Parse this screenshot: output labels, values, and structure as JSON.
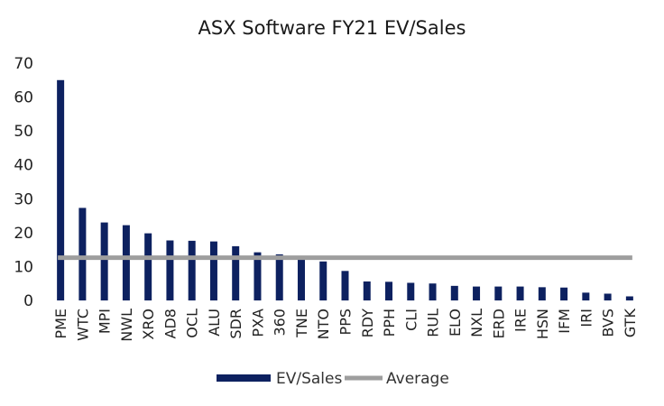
{
  "chart_data": {
    "type": "bar",
    "title": "ASX Software FY21 EV/Sales",
    "xlabel": "",
    "ylabel": "",
    "ylim": [
      0,
      70
    ],
    "yticks": [
      0,
      10,
      20,
      30,
      40,
      50,
      60,
      70
    ],
    "grid": false,
    "legend_position": "bottom",
    "categories": [
      "PME",
      "WTC",
      "MPI",
      "NWL",
      "XRO",
      "AD8",
      "OCL",
      "ALU",
      "SDR",
      "PXA",
      "360",
      "TNE",
      "NTO",
      "PPS",
      "RDY",
      "PPH",
      "CLI",
      "RUL",
      "ELO",
      "NXL",
      "ERD",
      "IRE",
      "HSN",
      "IFM",
      "IRI",
      "BVS",
      "GTK"
    ],
    "series": [
      {
        "name": "EV/Sales",
        "type": "bar",
        "color": "#0d2160",
        "values": [
          65,
          27.3,
          23,
          22.2,
          19.8,
          17.7,
          17.6,
          17.4,
          16,
          14.2,
          13.6,
          12.2,
          11.5,
          8.7,
          5.6,
          5.5,
          5.2,
          5,
          4.3,
          4.1,
          4.1,
          4.1,
          3.9,
          3.8,
          2.3,
          2,
          1.2
        ]
      },
      {
        "name": "Average",
        "type": "line",
        "color": "#9e9e9e",
        "value": 12.6
      }
    ]
  }
}
